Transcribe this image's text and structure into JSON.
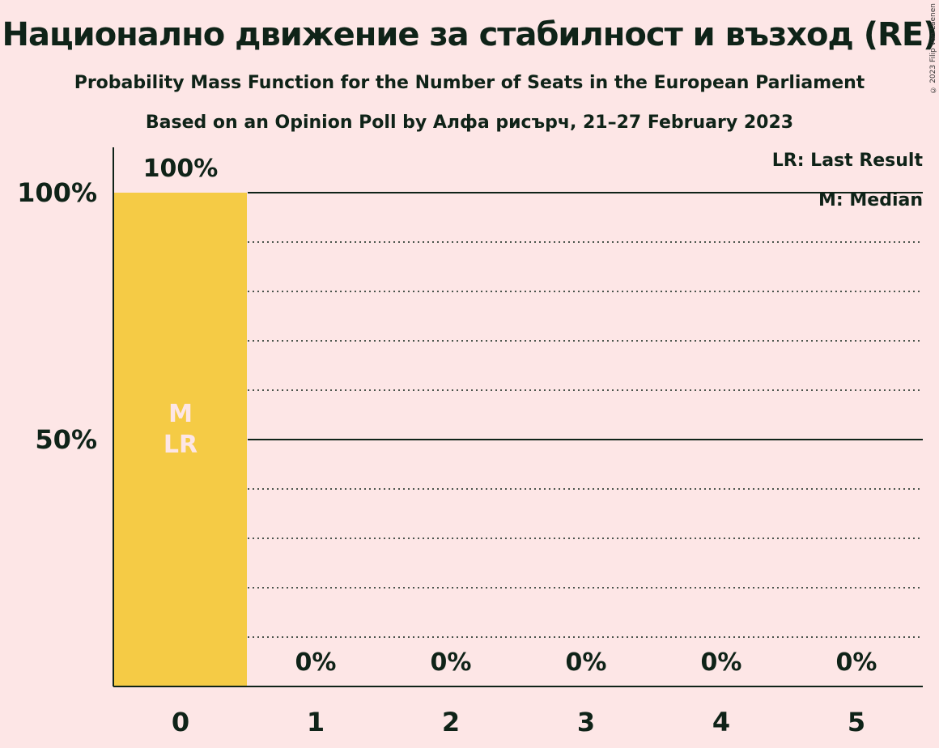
{
  "header": {
    "title": "Национално движение за стабилност и възход (RE)",
    "subtitle": "Probability Mass Function for the Number of Seats in the European Parliament",
    "subtitle2": "Based on an Opinion Poll by Алфа рисърч, 21–27 February 2023",
    "copyright": "© 2023 Filip van Laenen"
  },
  "legend": {
    "last_result": "LR: Last Result",
    "median": "M: Median"
  },
  "colors": {
    "background": "#fde6e6",
    "bar": "#f5cb45",
    "text": "#0f2318",
    "marker_text": "#fde6e6"
  },
  "chart_data": {
    "type": "bar",
    "categories": [
      "0",
      "1",
      "2",
      "3",
      "4",
      "5"
    ],
    "values": [
      100,
      0,
      0,
      0,
      0,
      0
    ],
    "value_labels": [
      "100%",
      "0%",
      "0%",
      "0%",
      "0%",
      "0%"
    ],
    "ylim": [
      0,
      100
    ],
    "yticks": [
      50,
      100
    ],
    "ytick_labels": [
      "50%",
      "100%"
    ],
    "grid": "dotted every 10%, solid at 50% and 100%",
    "markers": {
      "median": "M",
      "last_result": "LR",
      "category_index": 0
    }
  }
}
